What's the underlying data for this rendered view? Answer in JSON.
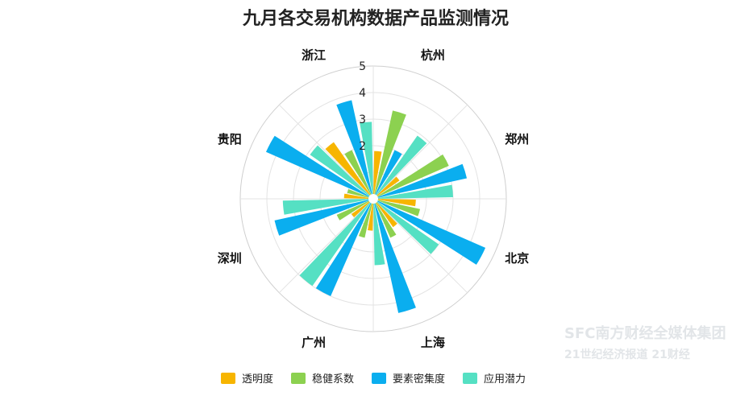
{
  "chart_data": {
    "type": "polar-bar",
    "title": "九月各交易机构数据产品监测情况",
    "categories": [
      "杭州",
      "郑州",
      "北京",
      "上海",
      "广州",
      "深圳",
      "贵阳",
      "浙江"
    ],
    "radial_axis": {
      "min": 0,
      "max": 5,
      "ticks": [
        0,
        1,
        2,
        3,
        4,
        5
      ]
    },
    "series": [
      {
        "name": "透明度",
        "color": "#F7B500",
        "values": [
          1.8,
          1.2,
          1.6,
          1.3,
          1.2,
          1.0,
          1.1,
          2.6
        ]
      },
      {
        "name": "稳健系数",
        "color": "#8CD150",
        "values": [
          3.4,
          3.1,
          1.8,
          1.6,
          1.5,
          1.5,
          1.0,
          2.0
        ]
      },
      {
        "name": "要素密集度",
        "color": "#0AAEEF",
        "values": [
          2.0,
          3.6,
          4.6,
          4.4,
          4.0,
          3.8,
          4.4,
          3.8
        ]
      },
      {
        "name": "应用潜力",
        "color": "#55E0C3",
        "values": [
          2.9,
          3.0,
          3.0,
          2.5,
          4.0,
          3.4,
          2.9,
          2.9
        ]
      }
    ],
    "legend_position": "bottom"
  },
  "watermark": {
    "line1": "SFC南方财经全媒体集团",
    "line2": "21世纪经济报道 21财经"
  }
}
